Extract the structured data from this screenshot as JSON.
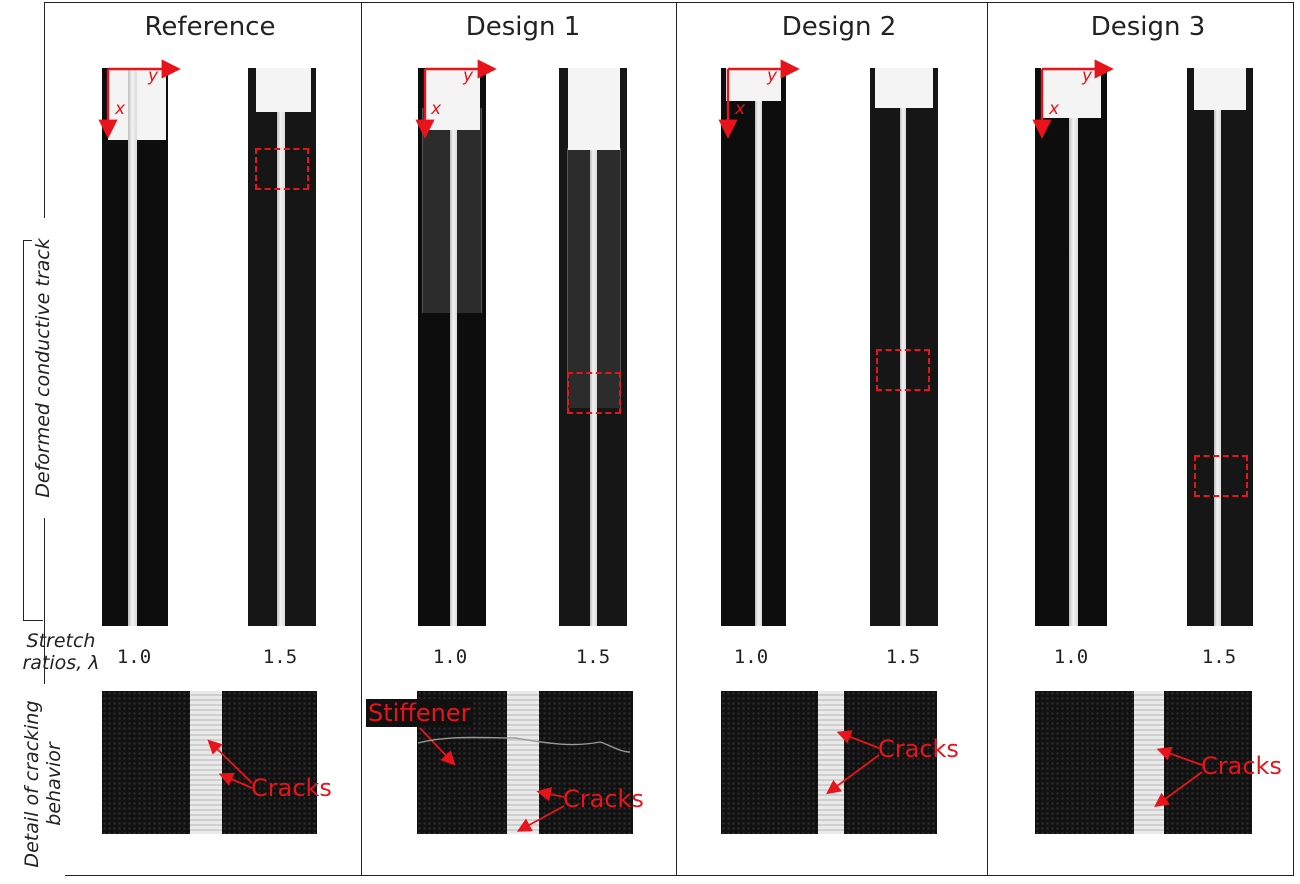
{
  "columns": [
    {
      "title": "Reference",
      "stretch_low": "1.0",
      "stretch_high": "1.5",
      "callouts": [
        "Cracks"
      ]
    },
    {
      "title": "Design 1",
      "stretch_low": "1.0",
      "stretch_high": "1.5",
      "callouts": [
        "Stiffener",
        "Cracks"
      ]
    },
    {
      "title": "Design 2",
      "stretch_low": "1.0",
      "stretch_high": "1.5",
      "callouts": [
        "Cracks"
      ]
    },
    {
      "title": "Design 3",
      "stretch_low": "1.0",
      "stretch_high": "1.5",
      "callouts": [
        "Cracks"
      ]
    }
  ],
  "row_labels": {
    "deformed": "Deformed conductive track",
    "stretch_line1": "Stretch",
    "stretch_line2": "ratios, λ",
    "detail_line1": "Detail of cracking",
    "detail_line2": "behavior"
  },
  "axes": {
    "x": "x",
    "y": "y"
  },
  "colors": {
    "annotation": "#e8141b",
    "background": "#0d0d0d",
    "track": "#eaeaea"
  }
}
